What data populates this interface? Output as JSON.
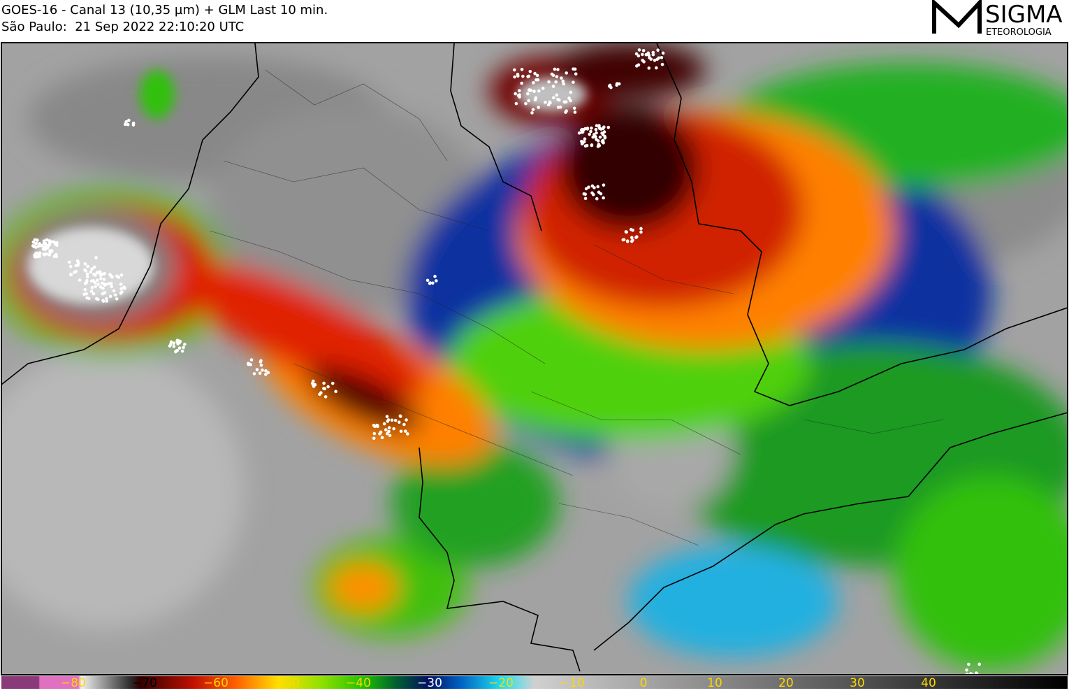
{
  "header": {
    "title": "GOES-16 - Canal 13 (10,35 µm) + GLM Last 10 min.",
    "subtitle": "São Paulo:  21 Sep 2022 22:10:20 UTC"
  },
  "logo": {
    "name": "SIGMA",
    "tagline": "ETEOROLOGIA"
  },
  "colorbar": {
    "ticks": [
      "−80",
      "−70",
      "−60",
      "−50",
      "−40",
      "−30",
      "−20",
      "−10",
      "0",
      "10",
      "20",
      "30",
      "40"
    ]
  }
}
